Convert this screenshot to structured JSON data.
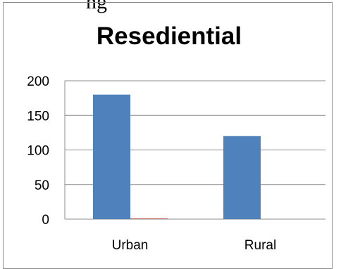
{
  "cut_text": "ng",
  "chart_data": {
    "type": "bar",
    "title": "Resediential",
    "xlabel": "",
    "ylabel": "",
    "categories": [
      "Urban",
      "Rural"
    ],
    "series": [
      {
        "values": [
          180,
          120
        ],
        "color": "#4f81bd"
      },
      {
        "values": [
          1,
          0
        ],
        "color": "#c0504d"
      }
    ],
    "ylim": [
      0,
      200
    ],
    "yticks": [
      "0",
      "50",
      "100",
      "150",
      "200"
    ],
    "grid": true,
    "legend": "none"
  }
}
